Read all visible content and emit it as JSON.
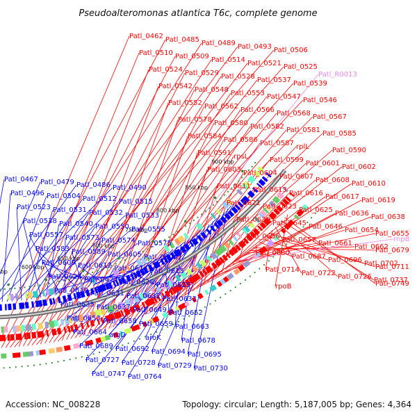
{
  "title": "Pseudoalteromonas atlantica T6c, complete genome",
  "accession": "Accession: NC_008228",
  "summary": "Topology: circular; Length: 5,187,005 bp; Genes: 4,364",
  "colors": {
    "forward": "#ff0000",
    "reverse": "#0000ff",
    "rna": "#ee88ee",
    "ring": "#888888",
    "tick_dot": "#2a8a2a"
  },
  "ticks": [
    "500 kbp",
    "550 kbp",
    "600 kbp",
    "650 kbp",
    "700 kbp",
    "750 kbp",
    "800 kbp",
    "850 kbp",
    "900 kbp"
  ],
  "forward_genes": [
    "Patl_0462",
    "Patl_0485",
    "Patl_0489",
    "Patl_0493",
    "Patl_0506",
    "Patl_0510",
    "Patl_0509",
    "Patl_0514",
    "Patl_0521",
    "Patl_0525",
    "Patl_0524",
    "Patl_0529",
    "Patl_0528",
    "Patl_0537",
    "Patl_0539",
    "Patl_0542",
    "Patl_0548",
    "Patl_0553",
    "Patl_0547",
    "Patl_0546",
    "Patl_0552",
    "Patl_0562",
    "Patl_0566",
    "Patl_0568",
    "Patl_0567",
    "Patl_0578",
    "Patl_0580",
    "Patl_0582",
    "Patl_0581",
    "Patl_0585",
    "Patl_0584",
    "Patl_0586",
    "Patl_0587",
    "rplL",
    "Patl_0590",
    "Patl_0591",
    "rpsL",
    "Patl_0599",
    "Patl_0601",
    "Patl_0602",
    "Patl_0603",
    "Patl_0604",
    "Patl_0607",
    "Patl_0608",
    "Patl_0610",
    "Patl_0611",
    "Patl_0613",
    "Patl_0616",
    "Patl_0617",
    "Patl_0619",
    "Patl_0621",
    "Patl_0623",
    "Patl_0625",
    "Patl_0636",
    "Patl_0638",
    "Patl_0639",
    "Patl_0645",
    "Patl_0646",
    "Patl_0654",
    "Patl_0655",
    "Patl_0656",
    "Patl_0657",
    "Patl_0661",
    "Patl_0662",
    "Patl_0679",
    "Patl_0680",
    "Patl_0687",
    "Patl_0696",
    "Patl_0702",
    "Patl_0711",
    "Patl_0714",
    "Patl_0722",
    "Patl_0726",
    "Patl_0737",
    "Patl_0749",
    "rpoB"
  ],
  "rna_genes": [
    "Patl_R0013",
    "rnpB"
  ],
  "reverse_genes": [
    "Patl_0467",
    "Patl_0479",
    "Patl_0486",
    "Patl_0490",
    "Patl_0496",
    "Patl_0504",
    "Patl_0512",
    "Patl_0515",
    "Patl_0523",
    "Patl_0531",
    "Patl_0532",
    "Patl_0533",
    "Patl_0538",
    "Patl_0540",
    "Patl_0550",
    "Patl_0555",
    "Patl_0557",
    "Patl_0573",
    "Patl_0574",
    "Patl_0575",
    "Patl_0583",
    "Patl_0589",
    "Patl_0605",
    "Patl_0606",
    "Patl_0609",
    "Patl_0612",
    "Patl_0614",
    "Patl_0615",
    "Patl_0626",
    "Patl_0627",
    "Patl_0628",
    "Patl_0629",
    "Patl_0630",
    "Patl_0631",
    "Patl_0632",
    "Patl_0633",
    "Patl_0635",
    "Patl_0637",
    "Patl_0649",
    "Patl_0652",
    "Patl_0653",
    "Patl_0658",
    "Patl_0659",
    "Patl_0663",
    "Patl_0664",
    "argD",
    "aroK",
    "Patl_0678",
    "Patl_0689",
    "Patl_0692",
    "Patl_0694",
    "Patl_0695",
    "Patl_0727",
    "Patl_0728",
    "Patl_0729",
    "Patl_0730",
    "Patl_0747",
    "Patl_0764"
  ]
}
